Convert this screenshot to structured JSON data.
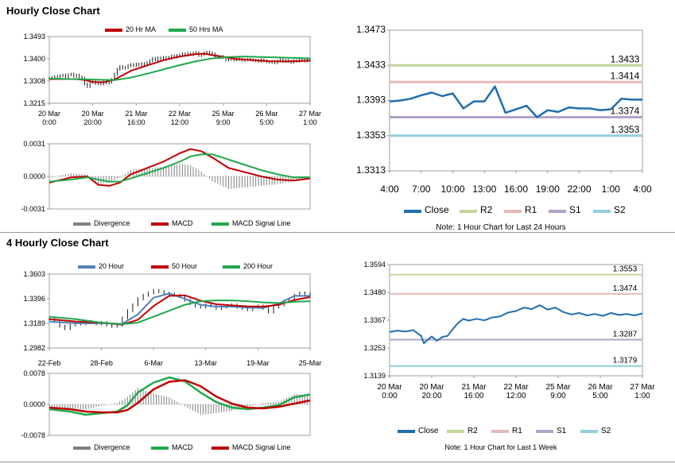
{
  "titles": {
    "hourly": "Hourly Close Chart",
    "four_hourly": "4 Hourly Close Chart"
  },
  "colors": {
    "red": "#c00000",
    "green": "#1fa84a",
    "blue": "#4f81bd",
    "darkblue": "#1f6db0",
    "r2": "#c3d69b",
    "r1": "#e6b9b8",
    "s1": "#b3a2c7",
    "s2": "#93cddd",
    "gray": "#808080"
  },
  "chart_data": [
    {
      "id": "hourly_price",
      "type": "line",
      "title": "",
      "legend": [
        "20 Hr MA",
        "50 Hrs MA"
      ],
      "legend_colors": [
        "#c00000",
        "#1fa84a"
      ],
      "ylim": [
        1.3215,
        1.3493
      ],
      "yticks": [
        "1.3493",
        "1.3400",
        "1.3308",
        "1.3215"
      ],
      "xticks": [
        "20 Mar\n0:00",
        "20 Mar\n20:00",
        "21 Mar\n16:00",
        "22 Mar\n12:00",
        "25 Mar\n9:00",
        "26 Mar\n5:00",
        "27 Mar\n1:00"
      ],
      "x": [
        0,
        1,
        2,
        3,
        4,
        5,
        6,
        7,
        8,
        9,
        10,
        11,
        12,
        13,
        14,
        15,
        16,
        17,
        18,
        19,
        20,
        21,
        22,
        23,
        24,
        25,
        26,
        27,
        28,
        29,
        30,
        31,
        32,
        33,
        34,
        35,
        36,
        37,
        38,
        39,
        40,
        41,
        42,
        43,
        44,
        45,
        46,
        47,
        48,
        49,
        50,
        51,
        52,
        53,
        54,
        55,
        56,
        57,
        58,
        59,
        60,
        61,
        62,
        63,
        64,
        65,
        66,
        67,
        68,
        69,
        70,
        71,
        72,
        73,
        74,
        75,
        76,
        77,
        78,
        79,
        80,
        81,
        82,
        83,
        84,
        85,
        86,
        87,
        88,
        89,
        90,
        91,
        92,
        93,
        94,
        95,
        96
      ],
      "close": [
        1.3318,
        1.3322,
        1.3326,
        1.3322,
        1.333,
        1.3332,
        1.3326,
        1.3334,
        1.3336,
        1.3328,
        1.3332,
        1.3324,
        1.3318,
        1.3296,
        1.3285,
        1.3302,
        1.3308,
        1.3298,
        1.3302,
        1.3296,
        1.3306,
        1.33,
        1.3304,
        1.3314,
        1.3336,
        1.3356,
        1.3368,
        1.3362,
        1.3364,
        1.3372,
        1.3376,
        1.3372,
        1.3378,
        1.3374,
        1.338,
        1.3378,
        1.3384,
        1.3392,
        1.3402,
        1.3396,
        1.3404,
        1.34,
        1.3406,
        1.3402,
        1.3406,
        1.3412,
        1.3408,
        1.3414,
        1.3416,
        1.342,
        1.3416,
        1.3422,
        1.3418,
        1.3424,
        1.3426,
        1.3414,
        1.3418,
        1.3424,
        1.3428,
        1.3424,
        1.342,
        1.3412,
        1.3406,
        1.341,
        1.3406,
        1.3396,
        1.3398,
        1.34,
        1.3396,
        1.3402,
        1.3398,
        1.3394,
        1.3396,
        1.3398,
        1.3396,
        1.3394,
        1.3392,
        1.339,
        1.3396,
        1.3392,
        1.3388,
        1.3386,
        1.339,
        1.3384,
        1.3392,
        1.3396,
        1.339,
        1.3394,
        1.339,
        1.3386,
        1.3392,
        1.339,
        1.3394,
        1.3396,
        1.3392,
        1.3394,
        1.3398
      ],
      "series": [
        {
          "name": "20 Hr MA",
          "x": [
            0,
            10,
            13,
            16,
            20,
            24,
            30,
            36,
            42,
            48,
            54,
            57,
            63,
            69,
            75,
            81,
            87,
            93,
            96
          ],
          "values": [
            1.3316,
            1.3316,
            1.3312,
            1.3304,
            1.3302,
            1.3314,
            1.335,
            1.3373,
            1.3394,
            1.341,
            1.342,
            1.3422,
            1.341,
            1.3399,
            1.3395,
            1.339,
            1.3389,
            1.3391,
            1.3393
          ]
        },
        {
          "name": "50 Hrs MA",
          "x": [
            0,
            24,
            30,
            36,
            42,
            48,
            54,
            60,
            66,
            72,
            78,
            84,
            90,
            96
          ],
          "values": [
            1.3318,
            1.3312,
            1.3322,
            1.3338,
            1.3356,
            1.3374,
            1.339,
            1.3402,
            1.3408,
            1.341,
            1.3408,
            1.3406,
            1.3404,
            1.3402
          ]
        }
      ]
    },
    {
      "id": "hourly_macd",
      "type": "line+bar",
      "legend": [
        "Divergence",
        "MACD",
        "MACD Signal Line"
      ],
      "legend_colors": [
        "#808080",
        "#c00000",
        "#1fa84a"
      ],
      "ylim": [
        -0.0031,
        0.0031
      ],
      "yticks": [
        "0.0031",
        "0.0000",
        "-0.0031"
      ],
      "x": [
        0,
        8,
        14,
        18,
        22,
        26,
        30,
        36,
        42,
        48,
        52,
        56,
        60,
        66,
        72,
        78,
        84,
        90,
        96
      ],
      "series": [
        {
          "name": "MACD",
          "values": [
            -0.0006,
            -0.0001,
            0.0,
            -0.0008,
            -0.0009,
            -0.0006,
            0.0002,
            0.0008,
            0.0014,
            0.0022,
            0.0026,
            0.0024,
            0.0018,
            0.0008,
            0.0004,
            0.0,
            -0.0003,
            -0.0004,
            -0.0002
          ]
        },
        {
          "name": "MACD Signal Line",
          "values": [
            -0.0005,
            -0.0003,
            -0.0001,
            -0.0003,
            -0.0005,
            -0.0005,
            -0.0002,
            0.0003,
            0.0008,
            0.0014,
            0.0019,
            0.0021,
            0.0021,
            0.0016,
            0.0011,
            0.0006,
            0.0002,
            -0.0001,
            -0.0001
          ]
        }
      ]
    },
    {
      "id": "hourly_24h",
      "type": "line",
      "legend": [
        "Close",
        "R2",
        "R1",
        "S1",
        "S2"
      ],
      "legend_colors": [
        "#1f6db0",
        "#c3d69b",
        "#e6b9b8",
        "#b3a2c7",
        "#93cddd"
      ],
      "note": "Note: 1 Hour Chart for Last 24 Hours",
      "ylim": [
        1.3313,
        1.3473
      ],
      "yticks": [
        "1.3473",
        "1.3433",
        "1.3393",
        "1.3353",
        "1.3313"
      ],
      "xticks": [
        "4:00",
        "7:00",
        "10:00",
        "13:00",
        "16:00",
        "19:00",
        "22:00",
        "1:00",
        "4:00"
      ],
      "levels": [
        {
          "name": "R2",
          "value": 1.3433,
          "label": "1.3433"
        },
        {
          "name": "R1",
          "value": 1.3414,
          "label": "1.3414"
        },
        {
          "name": "S1",
          "value": 1.3374,
          "label": "1.3374"
        },
        {
          "name": "S2",
          "value": 1.3353,
          "label": "1.3353"
        }
      ],
      "x": [
        0,
        1,
        2,
        3,
        4,
        5,
        6,
        7,
        8,
        9,
        10,
        11,
        12,
        13,
        14,
        15,
        16,
        17,
        18,
        19,
        20,
        21,
        22,
        23,
        24
      ],
      "values": [
        1.3392,
        1.3393,
        1.3395,
        1.3399,
        1.3402,
        1.3398,
        1.3401,
        1.3384,
        1.3392,
        1.3392,
        1.3409,
        1.3379,
        1.3383,
        1.3387,
        1.3374,
        1.3382,
        1.338,
        1.3385,
        1.3384,
        1.3384,
        1.3382,
        1.3383,
        1.3395,
        1.3394,
        1.3394
      ]
    },
    {
      "id": "four_hourly_price",
      "type": "line",
      "legend": [
        "20 Hour",
        "50 Hour",
        "200 Hour"
      ],
      "legend_colors": [
        "#4f81bd",
        "#c00000",
        "#1fa84a"
      ],
      "ylim": [
        1.2982,
        1.3603
      ],
      "yticks": [
        "1.3603",
        "1.3396",
        "1.3189",
        "1.2982"
      ],
      "xticks": [
        "22-Feb",
        "28-Feb",
        "6-Mar",
        "13-Mar",
        "19-Mar",
        "25-Mar"
      ],
      "x": [
        0,
        2,
        4,
        6,
        8,
        10,
        12,
        14,
        16,
        18,
        20,
        22,
        24,
        26,
        28,
        30,
        32,
        34,
        36,
        38,
        40,
        42,
        44,
        46,
        48,
        50,
        52,
        54,
        56,
        58,
        60,
        62,
        64,
        66,
        68,
        70,
        72,
        74,
        76,
        78,
        80,
        82,
        84,
        86,
        88,
        90,
        92,
        94,
        96,
        98,
        100
      ],
      "close": [
        1.3225,
        1.3205,
        1.3165,
        1.3145,
        1.3175,
        1.3195,
        1.3185,
        1.3205,
        1.3195,
        1.3185,
        1.3195,
        1.3175,
        1.3165,
        1.3175,
        1.3235,
        1.3295,
        1.3345,
        1.3395,
        1.3425,
        1.3445,
        1.3465,
        1.3455,
        1.3445,
        1.3435,
        1.3425,
        1.3415,
        1.3385,
        1.3355,
        1.3335,
        1.3325,
        1.3345,
        1.3335,
        1.3315,
        1.3325,
        1.3335,
        1.3345,
        1.3325,
        1.3315,
        1.3305,
        1.3325,
        1.3335,
        1.3315,
        1.3285,
        1.3325,
        1.3345,
        1.3375,
        1.3395,
        1.3425,
        1.3445,
        1.3425,
        1.3435
      ],
      "series": [
        {
          "name": "20 Hour",
          "x": [
            0,
            10,
            20,
            28,
            34,
            40,
            46,
            52,
            58,
            64,
            70,
            76,
            82,
            88,
            94,
            100
          ],
          "values": [
            1.3205,
            1.319,
            1.319,
            1.3185,
            1.3265,
            1.3405,
            1.344,
            1.3395,
            1.3345,
            1.333,
            1.333,
            1.3322,
            1.3318,
            1.3355,
            1.342,
            1.342
          ]
        },
        {
          "name": "50 Hour",
          "x": [
            0,
            10,
            20,
            28,
            34,
            40,
            46,
            52,
            58,
            64,
            70,
            76,
            82,
            88,
            94,
            100
          ],
          "values": [
            1.3225,
            1.3205,
            1.3195,
            1.3178,
            1.322,
            1.3335,
            1.342,
            1.3425,
            1.338,
            1.335,
            1.334,
            1.3332,
            1.333,
            1.3345,
            1.3385,
            1.341
          ]
        },
        {
          "name": "200 Hour",
          "x": [
            0,
            10,
            20,
            28,
            34,
            40,
            46,
            52,
            58,
            64,
            70,
            76,
            82,
            88,
            94,
            100
          ],
          "values": [
            1.3245,
            1.3225,
            1.3195,
            1.3182,
            1.3195,
            1.3245,
            1.3295,
            1.3345,
            1.3375,
            1.3382,
            1.3382,
            1.3375,
            1.3365,
            1.336,
            1.337,
            1.3375
          ]
        }
      ]
    },
    {
      "id": "four_hourly_macd",
      "type": "line+bar",
      "legend": [
        "Divergence",
        "MACD",
        "MACD Signal Line"
      ],
      "legend_colors": [
        "#808080",
        "#1fa84a",
        "#c00000"
      ],
      "ylim": [
        -0.0078,
        0.0078
      ],
      "yticks": [
        "0.0078",
        "0.0000",
        "-0.0078"
      ],
      "x": [
        0,
        8,
        14,
        20,
        26,
        30,
        34,
        40,
        46,
        52,
        58,
        64,
        70,
        76,
        82,
        88,
        94,
        100
      ],
      "series": [
        {
          "name": "MACD",
          "values": [
            -0.0012,
            -0.0018,
            -0.0026,
            -0.0022,
            -0.0018,
            -0.0002,
            0.003,
            0.0055,
            0.0068,
            0.0058,
            0.003,
            0.0006,
            -0.0008,
            -0.0012,
            -0.0008,
            -0.0002,
            0.0018,
            0.0025
          ]
        },
        {
          "name": "MACD Signal Line",
          "values": [
            -0.0008,
            -0.0012,
            -0.0018,
            -0.002,
            -0.002,
            -0.0014,
            0.0004,
            0.0038,
            0.0057,
            0.0061,
            0.0046,
            0.002,
            0.0002,
            -0.0008,
            -0.001,
            -0.0006,
            0.0002,
            0.001
          ]
        }
      ]
    },
    {
      "id": "four_hourly_week",
      "type": "line",
      "legend": [
        "Close",
        "R2",
        "R1",
        "S1",
        "S2"
      ],
      "legend_colors": [
        "#1f6db0",
        "#c3d69b",
        "#e6b9b8",
        "#b3a2c7",
        "#93cddd"
      ],
      "note": "Note: 1 Hour Chart for Last 1 Week",
      "ylim": [
        1.3139,
        1.3594
      ],
      "yticks": [
        "1.3594",
        "1.3480",
        "1.3367",
        "1.3253",
        "1.3139"
      ],
      "xticks": [
        "20 Mar\n0:00",
        "20 Mar\n20:00",
        "21 Mar\n16:00",
        "22 Mar\n12:00",
        "25 Mar\n9:00",
        "26 Mar\n5:00",
        "27 Mar\n1:00"
      ],
      "levels": [
        {
          "name": "R2",
          "value": 1.3553,
          "label": "1.3553"
        },
        {
          "name": "R1",
          "value": 1.3474,
          "label": "1.3474"
        },
        {
          "name": "S1",
          "value": 1.3287,
          "label": "1.3287"
        },
        {
          "name": "S2",
          "value": 1.3179,
          "label": "1.3179"
        }
      ],
      "x": [
        0,
        3,
        6,
        9,
        12,
        13,
        14,
        16,
        18,
        20,
        22,
        24,
        26,
        28,
        30,
        33,
        36,
        39,
        42,
        45,
        48,
        51,
        54,
        57,
        60,
        63,
        66,
        69,
        72,
        75,
        78,
        81,
        84,
        87,
        90,
        93,
        96
      ],
      "values": [
        1.3318,
        1.3324,
        1.332,
        1.3326,
        1.3302,
        1.3272,
        1.3282,
        1.33,
        1.3282,
        1.3298,
        1.3302,
        1.333,
        1.3355,
        1.3372,
        1.3365,
        1.3372,
        1.3366,
        1.3378,
        1.3382,
        1.3398,
        1.3404,
        1.3418,
        1.3412,
        1.3428,
        1.341,
        1.3418,
        1.34,
        1.339,
        1.3396,
        1.3386,
        1.3392,
        1.3384,
        1.3396,
        1.3388,
        1.3392,
        1.3386,
        1.3394
      ]
    }
  ]
}
